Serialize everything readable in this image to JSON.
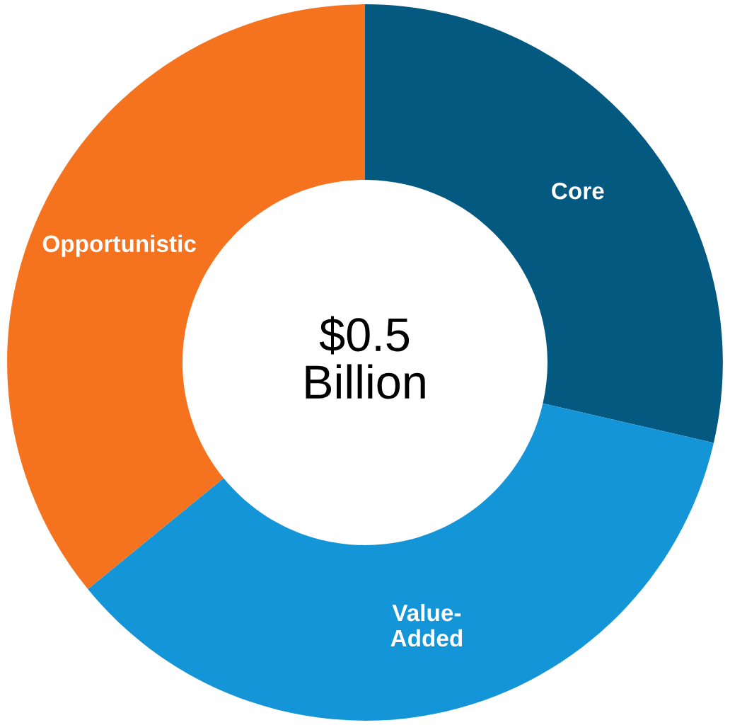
{
  "chart_data": {
    "type": "donut",
    "categories": [
      "Core",
      "Value-\nAdded",
      "Opportunistic"
    ],
    "values": [
      28.6,
      35.5,
      35.9
    ],
    "colors": [
      "#03597f",
      "#1495d8",
      "#f5731f"
    ],
    "annotations": [
      "$0.5\nBillion"
    ],
    "legend": false
  }
}
